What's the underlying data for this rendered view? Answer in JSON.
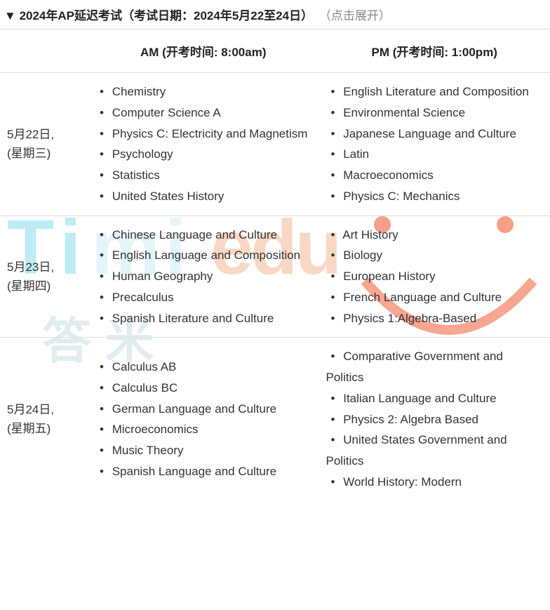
{
  "header": {
    "triangle": "▼",
    "title": "2024年AP延迟考试（考试日期：2024年5月22至24日）",
    "hint": "（点击展开）"
  },
  "columns": {
    "date": "",
    "am": "AM (开考时间: 8:00am)",
    "pm": "PM (开考时间: 1:00pm)"
  },
  "rows": [
    {
      "date_line1": "5月22日,",
      "date_line2": "(星期三)",
      "am": [
        "Chemistry",
        "Computer Science A",
        "Physics C: Electricity and Magnetism",
        "Psychology",
        "Statistics",
        "United States History"
      ],
      "pm": [
        "English Literature and Composition",
        "Environmental Science",
        "Japanese Language and Culture",
        "Latin",
        "Macroeconomics",
        "Physics C: Mechanics"
      ]
    },
    {
      "date_line1": "5月23日,",
      "date_line2": "(星期四)",
      "am": [
        "Chinese Language and Culture",
        "English Language and Composition",
        "Human Geography",
        "Precalculus",
        "Spanish Literature and Culture"
      ],
      "pm": [
        "Art History",
        "Biology",
        "European History",
        "French Language and Culture",
        "Physics 1:Algebra-Based"
      ]
    },
    {
      "date_line1": "5月24日,",
      "date_line2": "(星期五)",
      "am": [
        "Calculus AB",
        "Calculus BC",
        "German Language and Culture",
        "Microeconomics",
        "Music Theory",
        "Spanish Language and Culture"
      ],
      "pm": [
        "Comparative Government and Politics",
        "Italian Language and Culture",
        "Physics 2: Algebra Based",
        "United States Government and Politics",
        "World History: Modern"
      ]
    }
  ],
  "bullet": "•"
}
